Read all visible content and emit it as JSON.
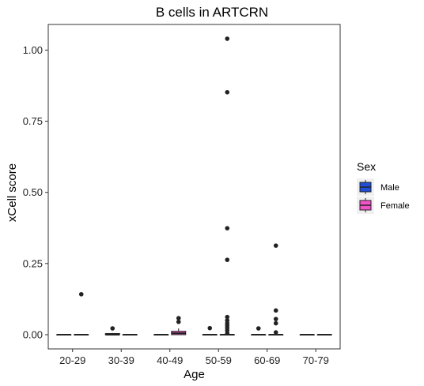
{
  "chart_data": {
    "type": "box",
    "title": "B cells in ARTCRN",
    "xlabel": "Age",
    "ylabel": "xCell score",
    "categories": [
      "20-29",
      "30-39",
      "40-49",
      "50-59",
      "60-69",
      "70-79"
    ],
    "ylim": [
      -0.05,
      1.09
    ],
    "yticks": [
      0.0,
      0.25,
      0.5,
      0.75,
      1.0
    ],
    "ytick_labels": [
      "0.00",
      "0.25",
      "0.50",
      "0.75",
      "1.00"
    ],
    "grid": false,
    "legend": {
      "title": "Sex",
      "position": "right",
      "entries": [
        {
          "name": "Male",
          "color": "#1f4fd8"
        },
        {
          "name": "Female",
          "color": "#f252c8"
        }
      ]
    },
    "series": [
      {
        "name": "Male",
        "color": "#1f4fd8",
        "boxes": [
          {
            "category": "20-29",
            "q1": 0.0,
            "median": 0.0,
            "q3": 0.0,
            "whisker_low": 0.0,
            "whisker_high": 0.0,
            "outliers": []
          },
          {
            "category": "30-39",
            "q1": 0.0,
            "median": 0.0,
            "q3": 0.004,
            "whisker_low": 0.0,
            "whisker_high": 0.006,
            "outliers": [
              0.022
            ]
          },
          {
            "category": "40-49",
            "q1": 0.0,
            "median": 0.0,
            "q3": 0.0,
            "whisker_low": 0.0,
            "whisker_high": 0.0,
            "outliers": []
          },
          {
            "category": "50-59",
            "q1": 0.0,
            "median": 0.0,
            "q3": 0.0,
            "whisker_low": 0.0,
            "whisker_high": 0.0,
            "outliers": [
              0.023
            ]
          },
          {
            "category": "60-69",
            "q1": 0.0,
            "median": 0.0,
            "q3": 0.0,
            "whisker_low": 0.0,
            "whisker_high": 0.0,
            "outliers": [
              0.022
            ]
          },
          {
            "category": "70-79",
            "q1": 0.0,
            "median": 0.0,
            "q3": 0.0,
            "whisker_low": 0.0,
            "whisker_high": 0.0,
            "outliers": []
          }
        ]
      },
      {
        "name": "Female",
        "color": "#f252c8",
        "boxes": [
          {
            "category": "20-29",
            "q1": 0.0,
            "median": 0.0,
            "q3": 0.0,
            "whisker_low": 0.0,
            "whisker_high": 0.0,
            "outliers": [
              0.142
            ]
          },
          {
            "category": "30-39",
            "q1": 0.0,
            "median": 0.0,
            "q3": 0.0,
            "whisker_low": 0.0,
            "whisker_high": 0.0,
            "outliers": []
          },
          {
            "category": "40-49",
            "q1": 0.0,
            "median": 0.005,
            "q3": 0.012,
            "whisker_low": 0.0,
            "whisker_high": 0.022,
            "outliers": [
              0.045,
              0.058
            ]
          },
          {
            "category": "50-59",
            "q1": 0.0,
            "median": 0.0,
            "q3": 0.0,
            "whisker_low": 0.0,
            "whisker_high": 0.0,
            "outliers": [
              1.04,
              0.852,
              0.374,
              0.263,
              0.062,
              0.05,
              0.04,
              0.032,
              0.024,
              0.015,
              0.005
            ]
          },
          {
            "category": "60-69",
            "q1": 0.0,
            "median": 0.0,
            "q3": 0.0,
            "whisker_low": 0.0,
            "whisker_high": 0.0,
            "outliers": [
              0.313,
              0.085,
              0.055,
              0.04,
              0.008
            ]
          },
          {
            "category": "70-79",
            "q1": 0.0,
            "median": 0.0,
            "q3": 0.0,
            "whisker_low": 0.0,
            "whisker_high": 0.0,
            "outliers": []
          }
        ]
      }
    ]
  }
}
